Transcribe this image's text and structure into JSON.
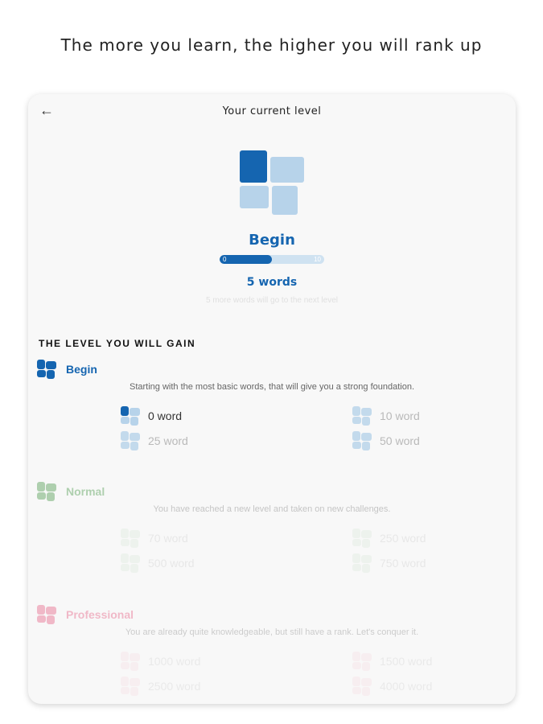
{
  "caption": "The more you learn, the higher you will rank up",
  "header": {
    "title": "Your current level",
    "back_icon": "arrow-left-icon"
  },
  "current": {
    "name": "Begin",
    "progress_min": "0",
    "progress_max": "10",
    "progress_fraction": 0.5,
    "words": "5 words",
    "hint": "5 more words will go to the next level",
    "color": "#1565b0"
  },
  "section_title": "THE LEVEL YOU WILL GAIN",
  "levels": [
    {
      "name": "Begin",
      "color": "#1565b0",
      "light": "#b7d3ea",
      "opacity": 1,
      "description": "Starting with the most basic words, that will give you a strong foundation.",
      "milestones": [
        {
          "label": "0 word",
          "active": true
        },
        {
          "label": "10 word"
        },
        {
          "label": "25 word"
        },
        {
          "label": "50 word"
        }
      ]
    },
    {
      "name": "Normal",
      "color": "#8fbf8f",
      "light": "#c6ddc6",
      "opacity": 0.35,
      "description": "You have reached a new level and taken on new challenges.",
      "milestones": [
        {
          "label": "70 word"
        },
        {
          "label": "250 word"
        },
        {
          "label": "500 word"
        },
        {
          "label": "750 word"
        }
      ]
    },
    {
      "name": "Professional",
      "color": "#ec8fa8",
      "light": "#f5c4d1",
      "opacity": 0.3,
      "description": "You are already quite knowledgeable, but still have a rank. Let's conquer it.",
      "milestones": [
        {
          "label": "1000 word"
        },
        {
          "label": "1500 word"
        },
        {
          "label": "2500 word"
        },
        {
          "label": "4000 word"
        }
      ]
    }
  ]
}
